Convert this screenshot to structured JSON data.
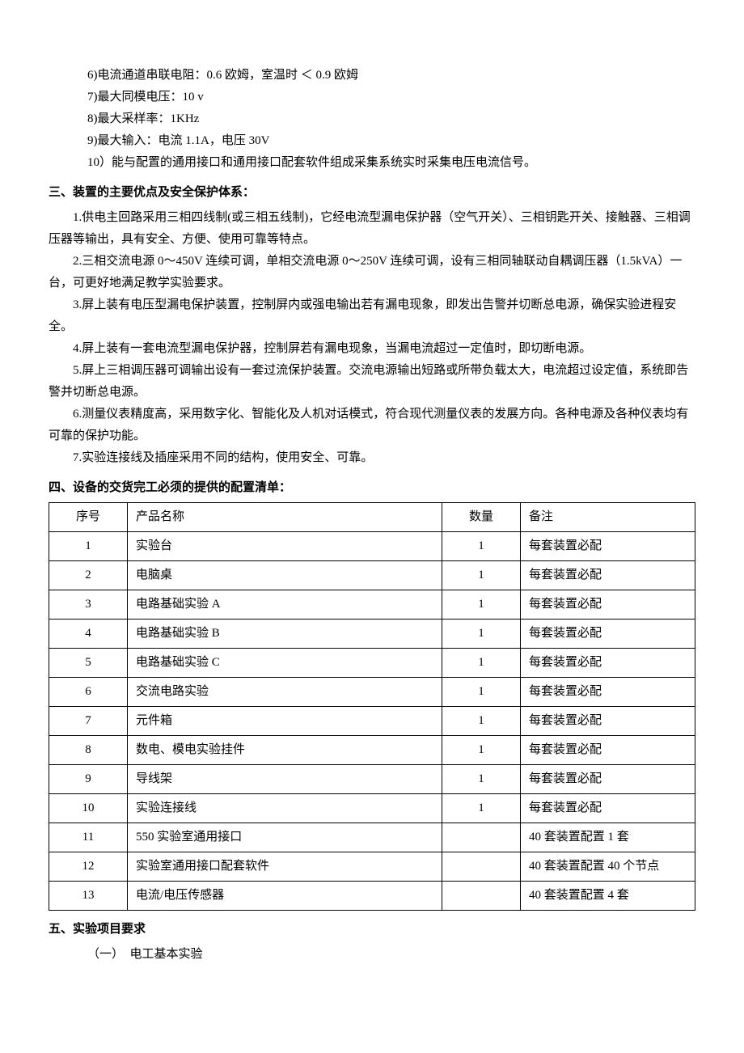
{
  "specs": [
    "6)电流通道串联电阻：0.6 欧姆，室温时 ＜ 0.9 欧姆",
    "7)最大同模电压：10 v",
    "8)最大采样率：1KHz",
    "9)最大输入：电流 1.1A，电压 30V",
    "10）能与配置的通用接口和通用接口配套软件组成采集系统实时采集电压电流信号。"
  ],
  "section3": {
    "title": "三、装置的主要优点及安全保护体系：",
    "items": [
      "1.供电主回路采用三相四线制(或三相五线制)，它经电流型漏电保护器（空气开关）、三相钥匙开关、接触器、三相调压器等输出，具有安全、方便、使用可靠等特点。",
      "2.三相交流电源 0～450V 连续可调，单相交流电源 0～250V 连续可调，设有三相同轴联动自耦调压器（1.5kVA）一台，可更好地满足教学实验要求。",
      "3.屏上装有电压型漏电保护装置，控制屏内或强电输出若有漏电现象，即发出告警并切断总电源，确保实验进程安全。",
      "4.屏上装有一套电流型漏电保护器，控制屏若有漏电现象，当漏电流超过一定值时，即切断电源。",
      "5.屏上三相调压器可调输出设有一套过流保护装置。交流电源输出短路或所带负载太大，电流超过设定值，系统即告警并切断总电源。",
      "6.测量仪表精度高，采用数字化、智能化及人机对话模式，符合现代测量仪表的发展方向。各种电源及各种仪表均有可靠的保护功能。",
      "7.实验连接线及插座采用不同的结构，使用安全、可靠。"
    ]
  },
  "section4": {
    "title": "四、设备的交货完工必须的提供的配置清单：",
    "table": {
      "headers": [
        "序号",
        "产品名称",
        "数量",
        "备注"
      ],
      "rows": [
        [
          "1",
          "实验台",
          "1",
          "每套装置必配"
        ],
        [
          "2",
          "电脑桌",
          "1",
          "每套装置必配"
        ],
        [
          "3",
          "电路基础实验 A",
          "1",
          "每套装置必配"
        ],
        [
          "4",
          "电路基础实验 B",
          "1",
          "每套装置必配"
        ],
        [
          "5",
          "电路基础实验 C",
          "1",
          "每套装置必配"
        ],
        [
          "6",
          "交流电路实验",
          "1",
          "每套装置必配"
        ],
        [
          "7",
          "元件箱",
          "1",
          "每套装置必配"
        ],
        [
          "8",
          "数电、模电实验挂件",
          "1",
          "每套装置必配"
        ],
        [
          "9",
          "导线架",
          "1",
          "每套装置必配"
        ],
        [
          "10",
          "实验连接线",
          "1",
          "每套装置必配"
        ],
        [
          "11",
          "550 实验室通用接口",
          "",
          "40 套装置配置 1 套"
        ],
        [
          "12",
          "实验室通用接口配套软件",
          "",
          "40 套装置配置 40 个节点"
        ],
        [
          "13",
          "电流/电压传感器",
          "",
          "40 套装置配置 4 套"
        ]
      ]
    }
  },
  "section5": {
    "title": "五、实验项目要求",
    "sub": "（一）　电工基本实验"
  }
}
